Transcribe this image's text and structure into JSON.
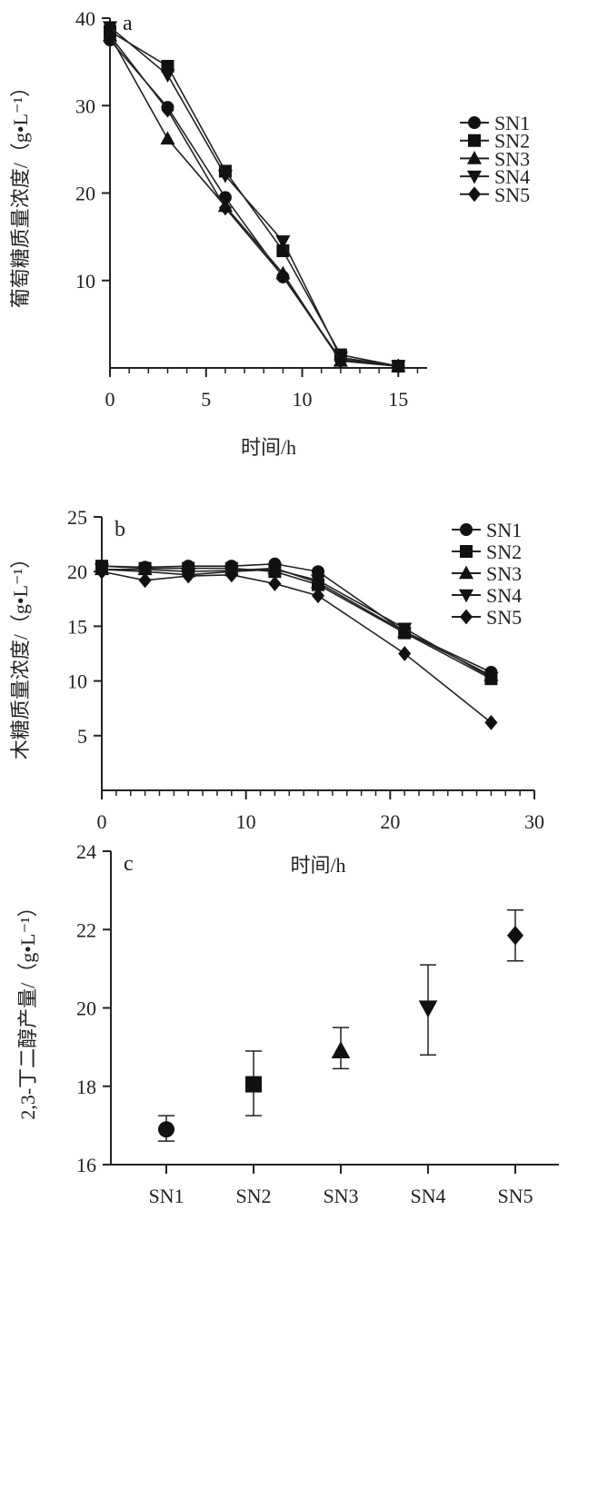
{
  "chart_data": [
    {
      "type": "line",
      "panel_label": "a",
      "xlabel": "时间/h",
      "ylabel": "葡萄糖质量浓度/（g•L⁻¹）",
      "xlim": [
        0,
        16.5
      ],
      "ylim": [
        0,
        40
      ],
      "xticks": [
        0,
        5,
        10,
        15
      ],
      "yticks": [
        10,
        20,
        30,
        40
      ],
      "legend_position": "right",
      "x": [
        0,
        3,
        6,
        9,
        12,
        15
      ],
      "series": [
        {
          "name": "SN1",
          "marker": "circle",
          "values": [
            37.5,
            29.8,
            19.5,
            10.4,
            1.0,
            0.2
          ]
        },
        {
          "name": "SN2",
          "marker": "square",
          "values": [
            38.5,
            34.5,
            22.5,
            13.4,
            1.5,
            0.2
          ]
        },
        {
          "name": "SN3",
          "marker": "triangle-up",
          "values": [
            38.0,
            26.2,
            18.5,
            10.8,
            0.8,
            0.2
          ]
        },
        {
          "name": "SN4",
          "marker": "triangle-down",
          "values": [
            39.0,
            33.5,
            22.0,
            14.5,
            1.2,
            0.2
          ]
        },
        {
          "name": "SN5",
          "marker": "diamond",
          "values": [
            38.0,
            29.5,
            18.3,
            10.5,
            0.8,
            0.2
          ]
        }
      ]
    },
    {
      "type": "line",
      "panel_label": "b",
      "xlabel": "时间/h",
      "ylabel": "木糖质量浓度/（g•L⁻¹）",
      "xlim": [
        0,
        30
      ],
      "ylim": [
        0,
        25
      ],
      "xticks": [
        0,
        10,
        20,
        30
      ],
      "yticks": [
        5,
        10,
        15,
        20,
        25
      ],
      "legend_position": "top-right",
      "x": [
        0,
        3,
        6,
        9,
        12,
        15,
        21,
        27
      ],
      "series": [
        {
          "name": "SN1",
          "marker": "circle",
          "values": [
            20.5,
            20.4,
            20.5,
            20.5,
            20.7,
            20.0,
            14.5,
            10.8
          ]
        },
        {
          "name": "SN2",
          "marker": "square",
          "values": [
            20.5,
            20.3,
            20.3,
            20.3,
            20.0,
            18.8,
            14.4,
            10.2
          ]
        },
        {
          "name": "SN3",
          "marker": "triangle-up",
          "values": [
            20.2,
            20.2,
            20.0,
            20.1,
            20.3,
            19.0,
            14.5,
            10.5
          ]
        },
        {
          "name": "SN4",
          "marker": "triangle-down",
          "values": [
            20.2,
            20.0,
            19.7,
            20.0,
            20.2,
            19.2,
            14.8,
            10.3
          ]
        },
        {
          "name": "SN5",
          "marker": "diamond",
          "values": [
            20.0,
            19.2,
            19.6,
            19.7,
            18.9,
            17.8,
            12.5,
            6.2
          ]
        }
      ]
    },
    {
      "type": "scatter",
      "panel_label": "c",
      "xlabel": "",
      "ylabel": "2,3-丁二醇产量/（g•L⁻¹）",
      "ylim": [
        16,
        24
      ],
      "yticks": [
        16,
        18,
        20,
        22,
        24
      ],
      "categories": [
        "SN1",
        "SN2",
        "SN3",
        "SN4",
        "SN5"
      ],
      "markers": [
        "circle",
        "square",
        "triangle-up",
        "triangle-down",
        "diamond"
      ],
      "values": [
        16.9,
        18.05,
        18.9,
        20.0,
        21.85
      ],
      "error_low": [
        16.6,
        17.25,
        18.45,
        18.8,
        21.2
      ],
      "error_high": [
        17.25,
        18.9,
        19.5,
        21.1,
        22.5
      ]
    }
  ]
}
